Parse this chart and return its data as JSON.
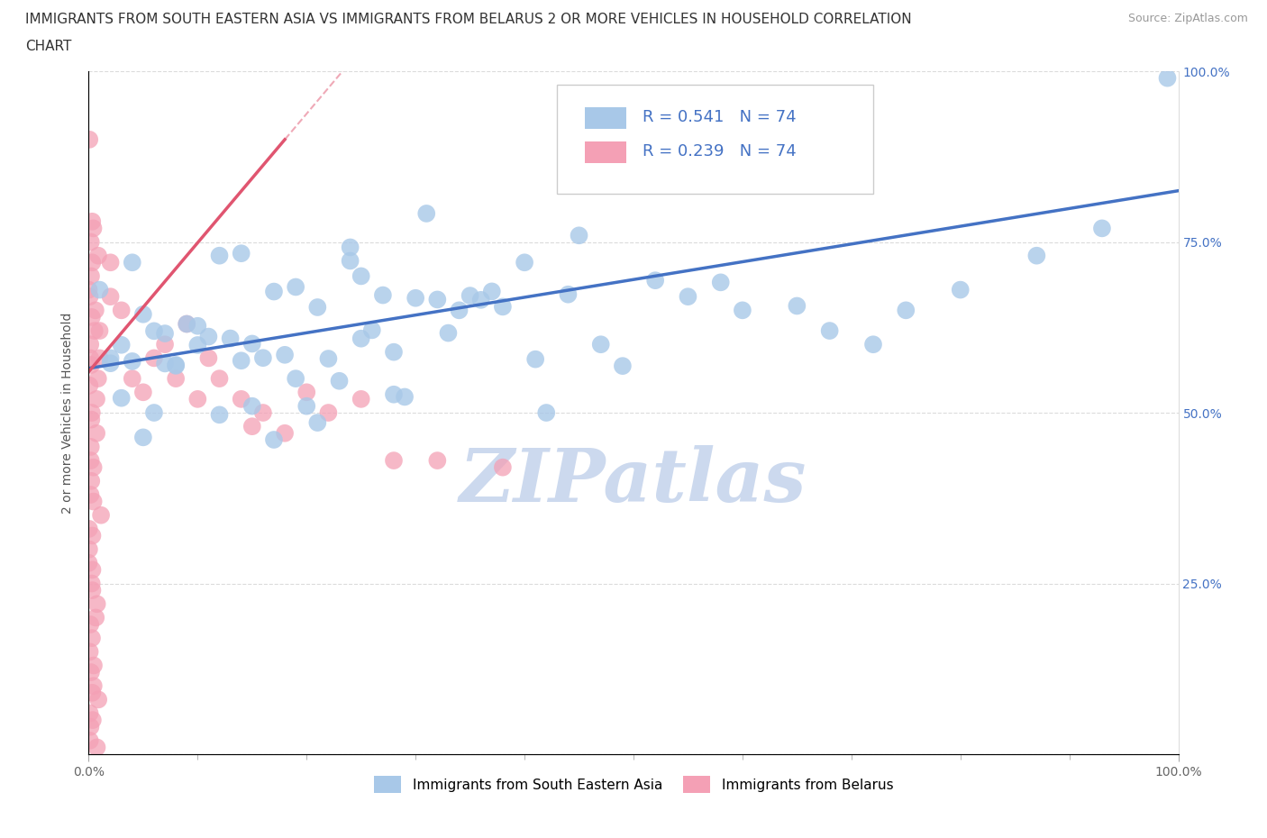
{
  "title_line1": "IMMIGRANTS FROM SOUTH EASTERN ASIA VS IMMIGRANTS FROM BELARUS 2 OR MORE VEHICLES IN HOUSEHOLD CORRELATION",
  "title_line2": "CHART",
  "source_text": "Source: ZipAtlas.com",
  "ylabel": "2 or more Vehicles in Household",
  "xlim": [
    0.0,
    1.0
  ],
  "ylim": [
    0.0,
    1.0
  ],
  "xtick_minor_values": [
    0.1,
    0.2,
    0.3,
    0.4,
    0.5,
    0.6,
    0.7,
    0.8,
    0.9
  ],
  "xtick_major_values": [
    0.0,
    1.0
  ],
  "xtick_major_labels": [
    "0.0%",
    "100.0%"
  ],
  "ytick_values": [
    0.0,
    0.25,
    0.5,
    0.75,
    1.0
  ],
  "ytick_labels_right": [
    "",
    "25.0%",
    "50.0%",
    "75.0%",
    "100.0%"
  ],
  "legend_label1": "Immigrants from South Eastern Asia",
  "legend_label2": "Immigrants from Belarus",
  "R1": 0.541,
  "N1": 74,
  "R2": 0.239,
  "N2": 74,
  "color_blue": "#a8c8e8",
  "color_pink": "#f4a0b5",
  "color_blue_line": "#4472c4",
  "color_pink_line": "#e05570",
  "color_blue_text": "#4472c4",
  "watermark_color": "#ccd9ee",
  "background_color": "#ffffff",
  "grid_color": "#cccccc",
  "title_fontsize": 11,
  "axis_label_fontsize": 10,
  "tick_fontsize": 10,
  "legend_fontsize": 12,
  "blue_line_x0": 0.0,
  "blue_line_y0": 0.565,
  "blue_line_x1": 1.0,
  "blue_line_y1": 0.825,
  "pink_line_x0": 0.0,
  "pink_line_y0": 0.56,
  "pink_line_x1": 0.18,
  "pink_line_y1": 0.9
}
